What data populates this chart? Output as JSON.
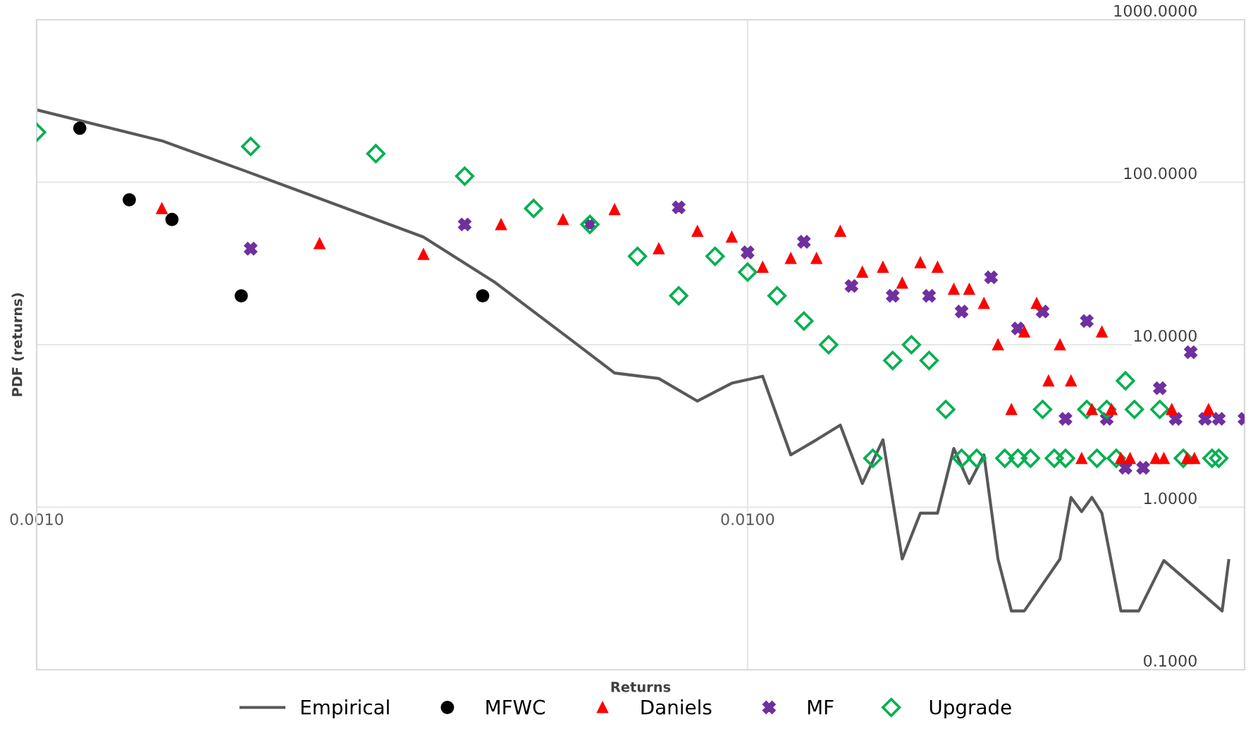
{
  "chart_data": {
    "type": "scatter",
    "xlabel": "Returns",
    "ylabel": "PDF (returns)",
    "log": "xy",
    "grid": true,
    "legend": "bottom",
    "xlim": [
      0.001,
      0.05
    ],
    "ylim": [
      0.1,
      1000
    ],
    "xticks": [
      {
        "value": 0.001,
        "label": "0.0010"
      },
      {
        "value": 0.01,
        "label": "0.0100"
      }
    ],
    "yticks": [
      {
        "value": 0.1,
        "label": "0.1000"
      },
      {
        "value": 1,
        "label": "1.0000"
      },
      {
        "value": 10,
        "label": "10.0000"
      },
      {
        "value": 100,
        "label": "100.0000"
      },
      {
        "value": 1000,
        "label": "1000.0000"
      }
    ],
    "series": [
      {
        "name": "Empirical",
        "type": "line",
        "color": "#595959",
        "marker": "none",
        "line_style": "solid",
        "x": [
          0.001,
          0.0015,
          0.002,
          0.0035,
          0.0044,
          0.0056,
          0.0065,
          0.0075,
          0.0085,
          0.0095,
          0.0105,
          0.0115,
          0.0125,
          0.0135,
          0.0145,
          0.0155,
          0.0165,
          0.0175,
          0.0185,
          0.0195,
          0.0205,
          0.0215,
          0.0225,
          0.0235,
          0.0245,
          0.0275,
          0.0285,
          0.0295,
          0.0305,
          0.0315,
          0.0335,
          0.0355,
          0.0385,
          0.0465,
          0.0475
        ],
        "values": [
          279,
          180,
          114,
          46,
          24.4,
          11,
          6.7,
          6.2,
          4.5,
          5.8,
          6.4,
          2.1,
          2.6,
          3.2,
          1.4,
          2.6,
          0.48,
          0.92,
          0.92,
          2.3,
          1.4,
          2.1,
          0.48,
          0.23,
          0.23,
          0.48,
          1.15,
          0.94,
          1.15,
          0.92,
          0.23,
          0.23,
          0.47,
          0.23,
          0.47
        ]
      },
      {
        "name": "MFWC",
        "color": "#000000",
        "marker": "circle",
        "x": [
          0.00115,
          0.00135,
          0.00155,
          0.00194,
          0.00424
        ],
        "values": [
          215,
          78,
          59,
          20,
          20
        ]
      },
      {
        "name": "Daniels",
        "color": "#ff0000",
        "marker": "triangle",
        "x": [
          0.0015,
          0.0025,
          0.0035,
          0.0045,
          0.0055,
          0.0065,
          0.0075,
          0.0085,
          0.0095,
          0.0105,
          0.0115,
          0.0125,
          0.0135,
          0.0145,
          0.0155,
          0.0165,
          0.0175,
          0.0185,
          0.0195,
          0.0205,
          0.0215,
          0.0225,
          0.0235,
          0.0245,
          0.0255,
          0.0265,
          0.0275,
          0.0285,
          0.0295,
          0.0305,
          0.0315,
          0.0325,
          0.0335,
          0.0345,
          0.0375,
          0.0385,
          0.0395,
          0.0415,
          0.0425,
          0.0445
        ],
        "values": [
          69,
          42,
          36,
          55,
          59,
          68,
          39,
          50,
          46,
          30,
          34,
          34,
          50,
          28,
          30,
          24,
          32,
          30,
          22,
          22,
          18,
          10,
          4,
          12,
          18,
          6,
          10,
          6,
          2,
          4,
          12,
          4,
          2,
          2,
          2,
          2,
          4,
          2,
          2,
          4
        ]
      },
      {
        "name": "MF",
        "color": "#7030a0",
        "marker": "cross",
        "x": [
          0.002,
          0.004,
          0.006,
          0.008,
          0.01,
          0.012,
          0.014,
          0.016,
          0.018,
          0.02,
          0.022,
          0.024,
          0.026,
          0.028,
          0.03,
          0.032,
          0.034,
          0.036,
          0.038,
          0.04,
          0.042,
          0.044,
          0.046,
          0.05
        ],
        "values": [
          39,
          55,
          55,
          70,
          37,
          43,
          23,
          20,
          20,
          16,
          26,
          12.6,
          16,
          3.5,
          14,
          3.5,
          1.75,
          1.75,
          5.4,
          3.5,
          9,
          3.5,
          3.5,
          3.5
        ]
      },
      {
        "name": "Upgrade",
        "color": "#00b050",
        "marker": "diamond",
        "x": [
          0.001,
          0.002,
          0.003,
          0.004,
          0.005,
          0.006,
          0.007,
          0.008,
          0.009,
          0.01,
          0.011,
          0.012,
          0.013,
          0.015,
          0.016,
          0.017,
          0.018,
          0.019,
          0.02,
          0.021,
          0.023,
          0.024,
          0.025,
          0.026,
          0.027,
          0.028,
          0.03,
          0.031,
          0.032,
          0.033,
          0.034,
          0.035,
          0.038,
          0.041,
          0.045,
          0.046
        ],
        "values": [
          203,
          166,
          150,
          109,
          69,
          55,
          35,
          20,
          35,
          28,
          20,
          14,
          10,
          2,
          8,
          10,
          8,
          4,
          2,
          2,
          2,
          2,
          2,
          4,
          2,
          2,
          4,
          2,
          4,
          2,
          6,
          4,
          4,
          2,
          2,
          2
        ]
      }
    ]
  }
}
